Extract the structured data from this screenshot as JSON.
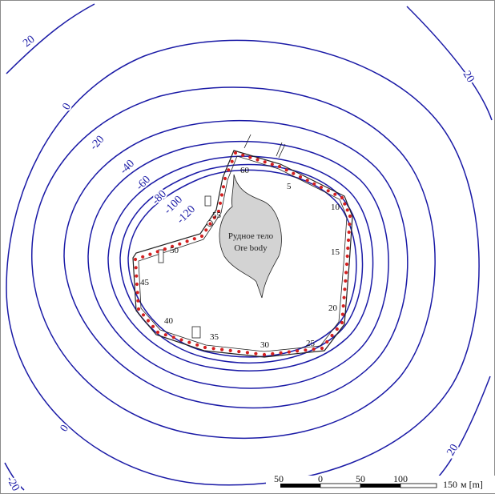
{
  "contour_labels": [
    "20",
    "0",
    "-20",
    "-40",
    "-60",
    "-80",
    "-100",
    "-120",
    "-20",
    "20",
    "0",
    "20"
  ],
  "well_labels": [
    "60",
    "5",
    "10",
    "55",
    "15",
    "50",
    "45",
    "20",
    "40",
    "35",
    "30",
    "25"
  ],
  "ore_body": {
    "label_ru": "Рудное тело",
    "label_en": "Ore body"
  },
  "scale_bar": {
    "ticks": [
      "50",
      "0",
      "50",
      "100",
      "150"
    ],
    "unit": "м [m]"
  },
  "colors": {
    "contour": "#1a1aa6",
    "wells": "#d42020",
    "ore": "#d3d3d3"
  }
}
